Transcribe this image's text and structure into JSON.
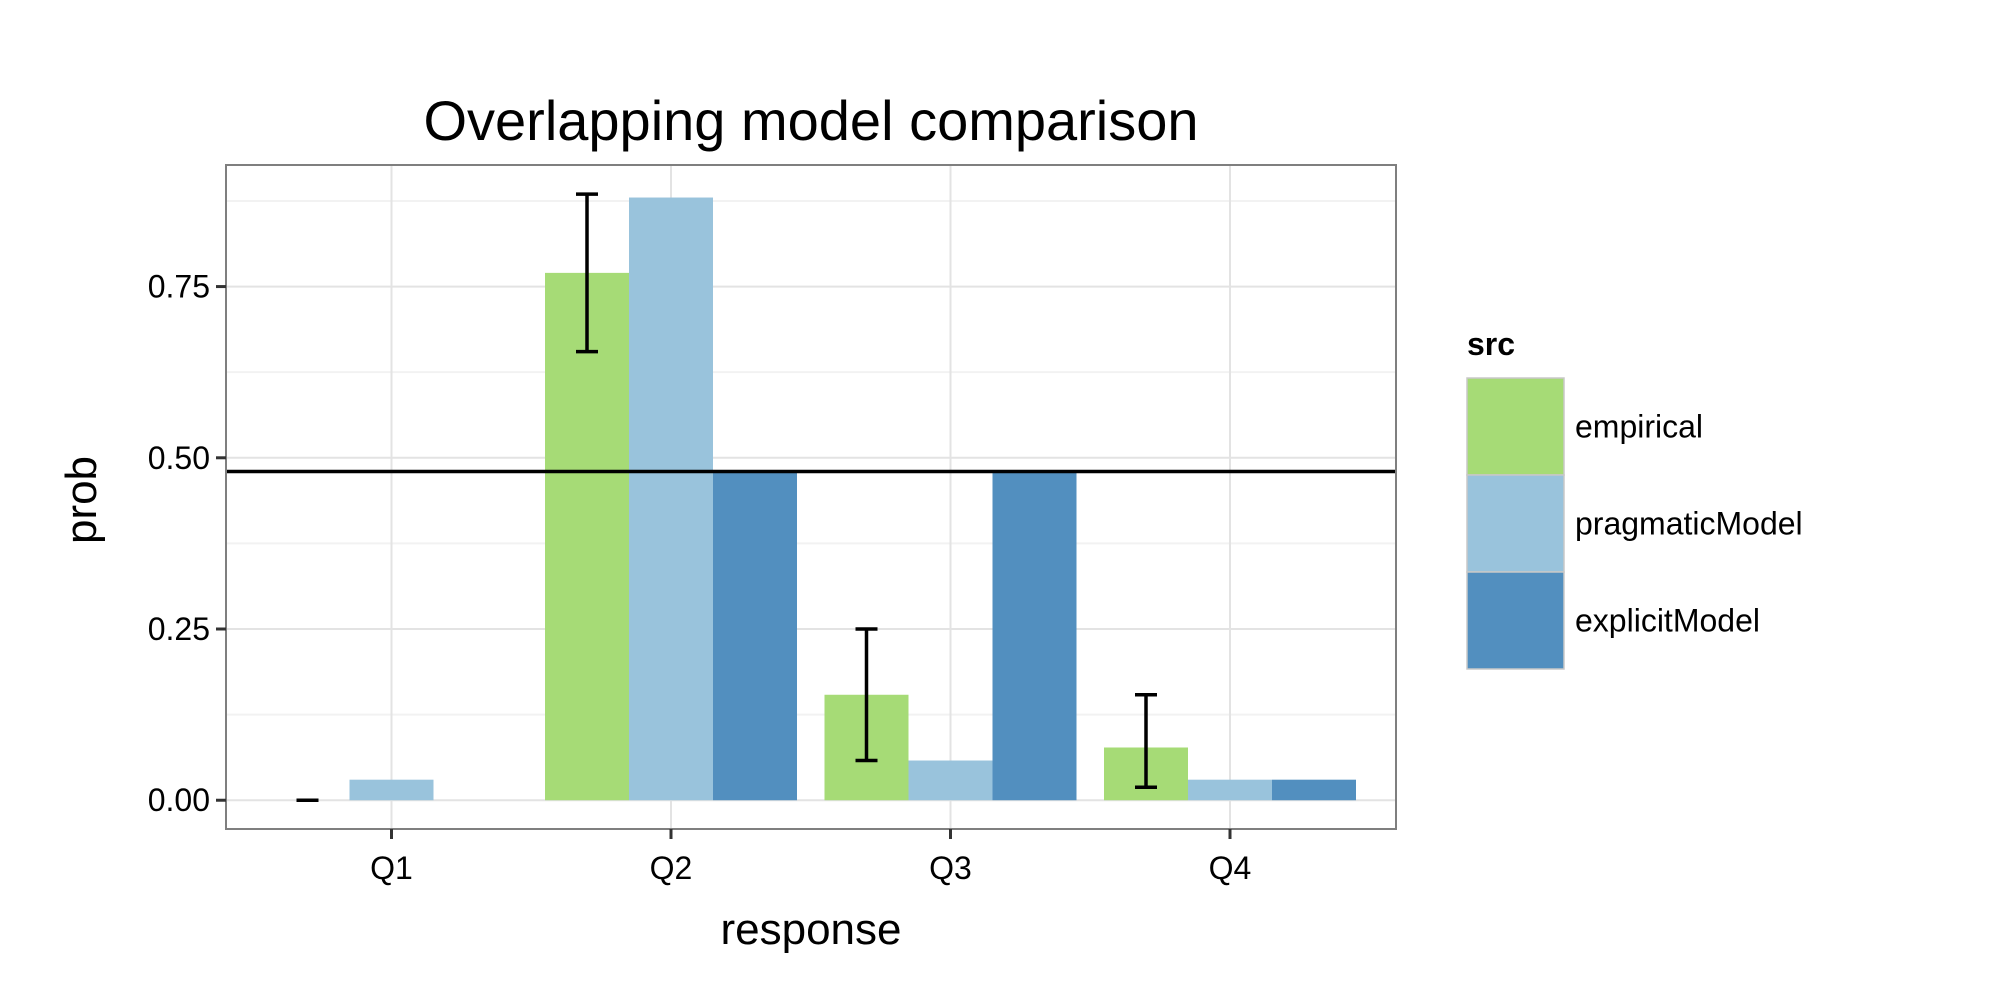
{
  "chart_data": {
    "type": "bar",
    "title": "Overlapping model comparison",
    "xlabel": "response",
    "ylabel": "prob",
    "categories": [
      "Q1",
      "Q2",
      "Q3",
      "Q4"
    ],
    "series": [
      {
        "name": "empirical",
        "color": "#a6db76",
        "values": [
          0.0,
          0.77,
          0.154,
          0.077
        ],
        "error": [
          [
            0.0,
            0.0
          ],
          [
            0.655,
            0.885
          ],
          [
            0.058,
            0.25
          ],
          [
            0.019,
            0.154
          ]
        ]
      },
      {
        "name": "pragmaticModel",
        "color": "#99c3dc",
        "values": [
          0.03,
          0.88,
          0.058,
          0.03
        ]
      },
      {
        "name": "explicitModel",
        "color": "#528fbf",
        "values": [
          0.0,
          0.48,
          0.48,
          0.03
        ]
      }
    ],
    "hline": 0.48,
    "ylim": [
      -0.042,
      0.9275
    ],
    "yticks": [
      0.0,
      0.25,
      0.5,
      0.75
    ],
    "ytick_labels": [
      "0.00",
      "0.25",
      "0.50",
      "0.75"
    ],
    "grid": true,
    "legend": {
      "title": "src",
      "placement": "right"
    }
  }
}
